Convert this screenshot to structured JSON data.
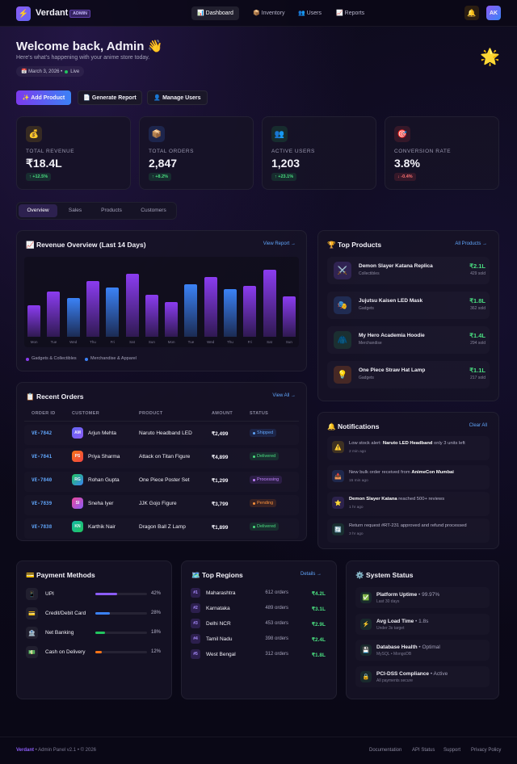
{
  "nav": {
    "logo_icon": "⚡",
    "brand": "Verdant",
    "badge": "ADMIN",
    "items": [
      "📊 Dashboard",
      "📦 Inventory",
      "👥 Users",
      "📈 Reports"
    ],
    "bell": "🔔",
    "avatar": "AK"
  },
  "hero": {
    "title": "Welcome back, Admin 👋",
    "subtitle": "Here's what's happening with your anime store today.",
    "date": "📅 March 3, 2026 •",
    "status": "Live",
    "decoration": "🌟"
  },
  "actions": [
    "✨ Add Product",
    "📄 Generate Report",
    "👤 Manage Users"
  ],
  "kpis": [
    {
      "icon": "💰",
      "label": "TOTAL REVENUE",
      "value": "₹18.4L",
      "change": "↑ +12.5%"
    },
    {
      "icon": "📦",
      "label": "TOTAL ORDERS",
      "value": "2,847",
      "change": "↑ +8.2%"
    },
    {
      "icon": "👥",
      "label": "ACTIVE USERS",
      "value": "1,203",
      "change": "↑ +23.1%"
    },
    {
      "icon": "🎯",
      "label": "CONVERSION RATE",
      "value": "3.8%",
      "change": "↓ -0.4%"
    }
  ],
  "tabs": [
    "Overview",
    "Sales",
    "Products",
    "Customers"
  ],
  "chart_data": {
    "type": "bar",
    "title": "📈 Revenue Overview (Last 14 Days)",
    "link": "View Report →",
    "categories": [
      "Mon",
      "Tue",
      "Wed",
      "Thu",
      "Fri",
      "Sat",
      "Sun",
      "Mon",
      "Tue",
      "Wed",
      "Thu",
      "Fri",
      "Sat",
      "Sun"
    ],
    "series": [
      {
        "name": "Gadgets & Collectibles",
        "color": "#8b3cf0",
        "values": [
          39,
          57,
          null,
          70,
          null,
          79,
          53,
          43,
          null,
          75,
          null,
          64,
          84,
          51
        ]
      },
      {
        "name": "Merchandise & Apparel",
        "color": "#3b82f6",
        "values": [
          null,
          null,
          48,
          null,
          62,
          null,
          null,
          null,
          66,
          null,
          60,
          null,
          null,
          null
        ]
      }
    ],
    "ylim": [
      0,
      100
    ]
  },
  "top_products": {
    "title": "🏆 Top Products",
    "link": "All Products →",
    "items": [
      {
        "icon": "⚔️",
        "name": "Demon Slayer Katana Replica",
        "category": "Collectibles",
        "revenue": "₹2.1L",
        "sold": "429 sold"
      },
      {
        "icon": "🎭",
        "name": "Jujutsu Kaisen LED Mask",
        "category": "Gadgets",
        "revenue": "₹1.8L",
        "sold": "362 sold"
      },
      {
        "icon": "🧥",
        "name": "My Hero Academia Hoodie",
        "category": "Merchandise",
        "revenue": "₹1.4L",
        "sold": "294 sold"
      },
      {
        "icon": "💡",
        "name": "One Piece Straw Hat Lamp",
        "category": "Gadgets",
        "revenue": "₹1.1L",
        "sold": "217 sold"
      }
    ]
  },
  "orders": {
    "title": "📋 Recent Orders",
    "link": "View All →",
    "headers": [
      "ORDER ID",
      "CUSTOMER",
      "PRODUCT",
      "AMOUNT",
      "STATUS"
    ],
    "rows": [
      [
        "VE-7842",
        "AM",
        "Arjun Mehta",
        "Naruto Headband LED",
        "₹2,499",
        "Shipped"
      ],
      [
        "VE-7841",
        "PS",
        "Priya Sharma",
        "Attack on Titan Figure",
        "₹4,899",
        "Delivered"
      ],
      [
        "VE-7840",
        "RG",
        "Rohan Gupta",
        "One Piece Poster Set",
        "₹1,299",
        "Processing"
      ],
      [
        "VE-7839",
        "SI",
        "Sneha Iyer",
        "JJK Gojo Figure",
        "₹3,799",
        "Pending"
      ],
      [
        "VE-7838",
        "KN",
        "Karthik Nair",
        "Dragon Ball Z Lamp",
        "₹1,899",
        "Delivered"
      ]
    ]
  },
  "notifications": {
    "title": "🔔 Notifications",
    "link": "Clear All",
    "items": [
      {
        "icon": "⚠️",
        "parts": [
          {
            "text": "Low stock alert: "
          },
          {
            "strong": "Naruto LED Headband"
          },
          {
            "text": " only 3 units left"
          }
        ],
        "time": "2 min ago"
      },
      {
        "icon": "📥",
        "parts": [
          {
            "text": "New bulk order received from "
          },
          {
            "strong": "AnimeCon Mumbai"
          }
        ],
        "time": "15 min ago"
      },
      {
        "icon": "⭐",
        "parts": [
          {
            "strong": "Demon Slayer Katana"
          },
          {
            "text": " reached 500+ reviews"
          }
        ],
        "time": "1 hr ago"
      },
      {
        "icon": "🔄",
        "parts": [
          {
            "text": "Return request #RT-231 approved and refund processed"
          }
        ],
        "time": "3 hr ago"
      }
    ]
  },
  "payments": {
    "title": "💳 Payment Methods",
    "xlim": [
      0,
      100
    ],
    "items": [
      {
        "icon": "📱",
        "name": "UPI",
        "color": "#8b5cf6"
      },
      {
        "icon": "💳",
        "name": "Credit/Debit Card",
        "color": "#3b82f6"
      },
      {
        "icon": "🏦",
        "name": "Net Banking",
        "color": "#22c55e"
      },
      {
        "icon": "💵",
        "name": "Cash on Delivery",
        "color": "#f97316"
      }
    ],
    "values": [
      42,
      28,
      18,
      12
    ],
    "value_labels": [
      "42%",
      "28%",
      "18%",
      "12%"
    ]
  },
  "regions": {
    "title": "🗺️ Top Regions",
    "link": "Details →",
    "rows": [
      {
        "rank": "#1",
        "name": "Maharashtra",
        "orders": "612 orders",
        "revenue": "₹4.2L"
      },
      {
        "rank": "#2",
        "name": "Karnataka",
        "orders": "489 orders",
        "revenue": "₹3.1L"
      },
      {
        "rank": "#3",
        "name": "Delhi NCR",
        "orders": "453 orders",
        "revenue": "₹2.9L"
      },
      {
        "rank": "#4",
        "name": "Tamil Nadu",
        "orders": "398 orders",
        "revenue": "₹2.4L"
      },
      {
        "rank": "#5",
        "name": "West Bengal",
        "orders": "312 orders",
        "revenue": "₹1.8L"
      }
    ]
  },
  "system": {
    "title": "⚙️ System Status",
    "items": [
      {
        "icon": "✅",
        "name": "Platform Uptime",
        "detail": " • 99.97%",
        "note": "Last 30 days"
      },
      {
        "icon": "⚡",
        "name": "Avg Load Time",
        "detail": " • 1.8s",
        "note": "Under 3s target"
      },
      {
        "icon": "💾",
        "name": "Database Health",
        "detail": " • Optimal",
        "note": "MySQL • MongoDB"
      },
      {
        "icon": "🔒",
        "name": "PCI-DSS Compliance",
        "detail": " • Active",
        "note": "All payments secure"
      }
    ]
  },
  "footer": {
    "brand": "Verdant",
    "text": " • Admin Panel v2.1 • © 2026",
    "links": [
      "Documentation",
      "API Status",
      "Support",
      "Privacy Policy"
    ]
  }
}
